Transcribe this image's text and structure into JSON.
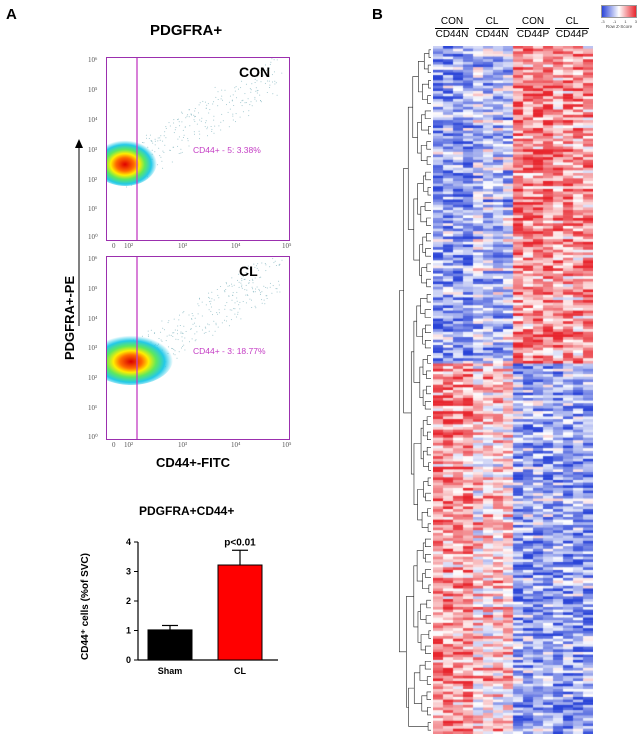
{
  "panel_a": {
    "letter": "A",
    "title": "PDGFRA+",
    "y_axis_label": "PDGFRA+-PE",
    "x_axis_label": "CD44+-FITC",
    "ticks_y": [
      "10⁶",
      "10⁵",
      "10⁴",
      "10³",
      "10²",
      "10¹",
      "10⁰"
    ],
    "ticks_x": [
      "0",
      "10²",
      "10³",
      "10⁴",
      "10⁵"
    ],
    "plots": [
      {
        "condition": "CON",
        "gate_label": "CD44+ - 5: 3.38%"
      },
      {
        "condition": "CL",
        "gate_label": "CD44+ - 3: 18.77%"
      }
    ]
  },
  "bar_chart": {
    "title": "PDGFRA+CD44+",
    "annotation": "p<0.01",
    "colors": {
      "Sham": "#000000",
      "CL": "#ff0000"
    }
  },
  "panel_b": {
    "letter": "B",
    "groups": [
      {
        "top": "CON",
        "bottom": "CD44N"
      },
      {
        "top": "CL",
        "bottom": "CD44N"
      },
      {
        "top": "CON",
        "bottom": "CD44P"
      },
      {
        "top": "CL",
        "bottom": "CD44P"
      }
    ],
    "legend_ticks": [
      "-3",
      "-1",
      "1",
      "3"
    ],
    "legend_label": "Row Z-Score",
    "colors": {
      "low": "#2b45d8",
      "mid": "#ffffff",
      "high": "#e8262e"
    }
  },
  "chart_data": {
    "type": "bar",
    "title": "PDGFRA+CD44+",
    "categories": [
      "Sham",
      "CL"
    ],
    "values": [
      1.02,
      3.22
    ],
    "errors": [
      0.15,
      0.5
    ],
    "xlabel": "",
    "ylabel": "CD44⁺ cells (%of SVC)",
    "ylim": [
      0,
      4
    ],
    "yticks": [
      "0",
      "1",
      "2",
      "3",
      "4"
    ],
    "grid": false
  }
}
